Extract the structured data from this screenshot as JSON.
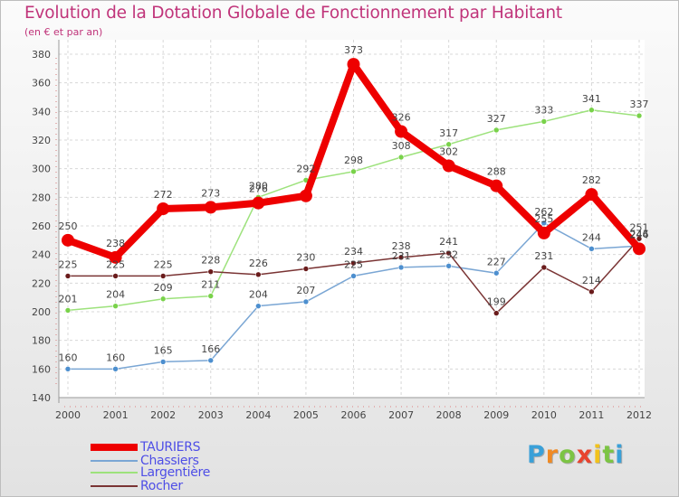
{
  "title": "Evolution de la Dotation Globale de Fonctionnement par Habitant",
  "subtitle": "(en € et par an)",
  "logo": {
    "letters": [
      "P",
      "r",
      "o",
      "x",
      "i",
      "t",
      "i"
    ],
    "colors": [
      "#3aa0d8",
      "#f08a24",
      "#7cc444",
      "#e8432e",
      "#f2c21b",
      "#7cc444",
      "#3aa0d8"
    ]
  },
  "chart_data": {
    "type": "line",
    "title": "Evolution de la Dotation Globale de Fonctionnement par Habitant",
    "subtitle": "(en € et par an)",
    "xlabel": "",
    "ylabel": "",
    "x": [
      "2000",
      "2001",
      "2002",
      "2003",
      "2004",
      "2005",
      "2006",
      "2007",
      "2008",
      "2009",
      "2010",
      "2011",
      "2012"
    ],
    "ylim": [
      140,
      380
    ],
    "yticks": [
      140,
      160,
      180,
      200,
      220,
      240,
      260,
      280,
      300,
      320,
      340,
      360,
      380
    ],
    "grid": true,
    "legend_position": "bottom-left",
    "series": [
      {
        "name": "TAURIERS",
        "color": "#ee0000",
        "marker": "#ee0000",
        "width": 8,
        "values": [
          250,
          238,
          272,
          273,
          276,
          281,
          373,
          326,
          302,
          288,
          255,
          282,
          244
        ],
        "labels": [
          "250",
          "238",
          "272",
          "273",
          "276",
          "",
          "373",
          "326",
          "302",
          "288",
          "255",
          "282",
          "244"
        ]
      },
      {
        "name": "Chassiers",
        "color": "#7aa6d4",
        "marker": "#4d8fcf",
        "width": 1.5,
        "values": [
          160,
          160,
          165,
          166,
          204,
          207,
          225,
          231,
          232,
          227,
          262,
          244,
          246
        ],
        "labels": [
          "160",
          "160",
          "165",
          "166",
          "204",
          "207",
          "225",
          "231",
          "232",
          "227",
          "262",
          "244",
          "246"
        ]
      },
      {
        "name": "Largentière",
        "color": "#9de27c",
        "marker": "#79d24a",
        "width": 1.5,
        "values": [
          201,
          204,
          209,
          211,
          280,
          292,
          298,
          308,
          317,
          327,
          333,
          341,
          337
        ],
        "labels": [
          "201",
          "204",
          "209",
          "211",
          "280",
          "292",
          "298",
          "308",
          "317",
          "327",
          "333",
          "341",
          "337"
        ]
      },
      {
        "name": "Rocher",
        "color": "#7a3434",
        "marker": "#6a1c1c",
        "width": 1.5,
        "values": [
          225,
          225,
          225,
          228,
          226,
          230,
          234,
          238,
          241,
          199,
          231,
          214,
          251
        ],
        "labels": [
          "225",
          "225",
          "225",
          "228",
          "226",
          "230",
          "234",
          "238",
          "241",
          "199",
          "231",
          "214",
          "251"
        ]
      }
    ]
  }
}
